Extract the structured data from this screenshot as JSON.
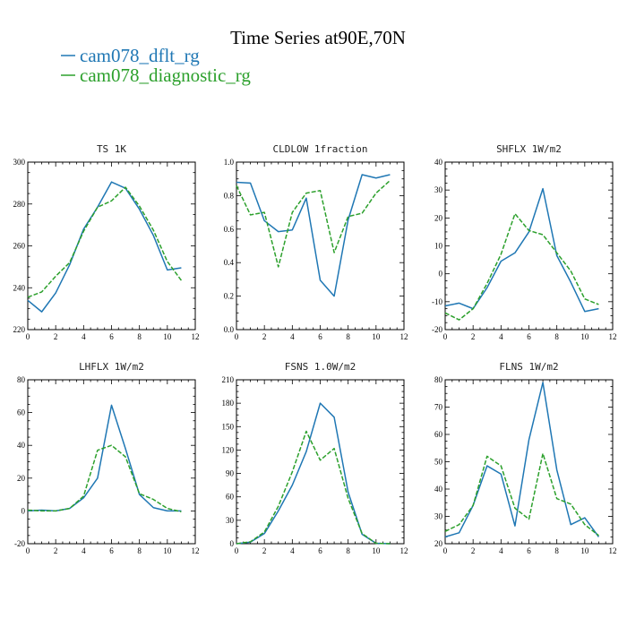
{
  "figure": {
    "title": "Time Series at90E,70N",
    "legend": [
      {
        "name": "cam078_dflt_rg",
        "color": "#1f77b4"
      },
      {
        "name": "cam078_diagnostic_rg",
        "color": "#2ca02c"
      }
    ]
  },
  "chart_data": [
    {
      "type": "line",
      "title": "TS  1K",
      "xlim": [
        0,
        12
      ],
      "xticks": [
        0,
        2,
        4,
        6,
        8,
        10,
        12
      ],
      "ylim": [
        220,
        300
      ],
      "yticks": [
        220,
        240,
        260,
        280,
        300
      ],
      "x": [
        0,
        1,
        2,
        3,
        4,
        5,
        6,
        7,
        8,
        9,
        10,
        11
      ],
      "series": [
        {
          "name": "cam078_dflt_rg",
          "values": [
            234,
            228.5,
            237.5,
            251,
            268,
            278.5,
            290.5,
            287.5,
            277.5,
            265,
            248.5,
            249.5
          ]
        },
        {
          "name": "cam078_diagnostic_rg",
          "values": [
            235.5,
            238,
            245.5,
            252,
            267,
            278.5,
            281.5,
            288,
            279,
            267.5,
            252.5,
            243.5
          ]
        }
      ]
    },
    {
      "type": "line",
      "title": "CLDLOW  1fraction",
      "xlim": [
        0,
        12
      ],
      "xticks": [
        0,
        2,
        4,
        6,
        8,
        10,
        12
      ],
      "ylim": [
        0,
        1
      ],
      "yticks": [
        0.0,
        0.2,
        0.4,
        0.6,
        0.8,
        1.0
      ],
      "x": [
        0,
        1,
        2,
        3,
        4,
        5,
        6,
        7,
        8,
        9,
        10,
        11
      ],
      "series": [
        {
          "name": "cam078_dflt_rg",
          "values": [
            0.88,
            0.875,
            0.65,
            0.585,
            0.595,
            0.785,
            0.295,
            0.2,
            0.655,
            0.925,
            0.905,
            0.925
          ]
        },
        {
          "name": "cam078_diagnostic_rg",
          "values": [
            0.86,
            0.685,
            0.7,
            0.375,
            0.7,
            0.815,
            0.83,
            0.46,
            0.675,
            0.695,
            0.815,
            0.89
          ]
        }
      ]
    },
    {
      "type": "line",
      "title": "SHFLX  1W/m2",
      "xlim": [
        0,
        12
      ],
      "xticks": [
        0,
        2,
        4,
        6,
        8,
        10,
        12
      ],
      "ylim": [
        -20,
        40
      ],
      "yticks": [
        -20,
        -10,
        0,
        10,
        20,
        30,
        40
      ],
      "x": [
        0,
        1,
        2,
        3,
        4,
        5,
        6,
        7,
        8,
        9,
        10,
        11
      ],
      "series": [
        {
          "name": "cam078_dflt_rg",
          "values": [
            -11.5,
            -10.5,
            -12.5,
            -5,
            4.5,
            7.5,
            15,
            30.5,
            6.5,
            -3,
            -13.5,
            -12.5
          ]
        },
        {
          "name": "cam078_diagnostic_rg",
          "values": [
            -14,
            -16.5,
            -12.5,
            -3.5,
            7,
            21.5,
            15.5,
            14,
            7.5,
            1,
            -9,
            -11
          ]
        }
      ]
    },
    {
      "type": "line",
      "title": "LHFLX  1W/m2",
      "xlim": [
        0,
        12
      ],
      "xticks": [
        0,
        2,
        4,
        6,
        8,
        10,
        12
      ],
      "ylim": [
        -20,
        80
      ],
      "yticks": [
        -20,
        0,
        20,
        40,
        60,
        80
      ],
      "x": [
        0,
        1,
        2,
        3,
        4,
        5,
        6,
        7,
        8,
        9,
        10,
        11
      ],
      "series": [
        {
          "name": "cam078_dflt_rg",
          "values": [
            0,
            0.5,
            0,
            1.5,
            8,
            20,
            64.5,
            38,
            10,
            2,
            0,
            0
          ]
        },
        {
          "name": "cam078_diagnostic_rg",
          "values": [
            0.5,
            0,
            0,
            1.5,
            9,
            37,
            40,
            33,
            10.5,
            7,
            1.5,
            -0.5
          ]
        }
      ]
    },
    {
      "type": "line",
      "title": "FSNS  1.0W/m2",
      "xlim": [
        0,
        12
      ],
      "xticks": [
        0,
        2,
        4,
        6,
        8,
        10,
        12
      ],
      "ylim": [
        0,
        210
      ],
      "yticks": [
        0,
        30,
        60,
        90,
        120,
        150,
        180,
        210
      ],
      "x": [
        0,
        1,
        2,
        3,
        4,
        5,
        6,
        7,
        8,
        9,
        10,
        11
      ],
      "series": [
        {
          "name": "cam078_dflt_rg",
          "values": [
            0,
            2,
            13,
            42,
            75,
            118,
            180,
            162,
            66,
            12,
            0.5,
            0
          ]
        },
        {
          "name": "cam078_diagnostic_rg",
          "values": [
            0,
            2.5,
            15,
            48,
            92,
            144,
            107,
            122,
            58,
            13,
            0.5,
            0
          ]
        }
      ]
    },
    {
      "type": "line",
      "title": "FLNS  1W/m2",
      "xlim": [
        0,
        12
      ],
      "xticks": [
        0,
        2,
        4,
        6,
        8,
        10,
        12
      ],
      "ylim": [
        20,
        80
      ],
      "yticks": [
        20,
        30,
        40,
        50,
        60,
        70,
        80
      ],
      "x": [
        0,
        1,
        2,
        3,
        4,
        5,
        6,
        7,
        8,
        9,
        10,
        11
      ],
      "series": [
        {
          "name": "cam078_dflt_rg",
          "values": [
            22.5,
            24,
            34,
            48.5,
            45.5,
            26.5,
            58,
            79,
            47,
            27,
            29.5,
            22.5
          ]
        },
        {
          "name": "cam078_diagnostic_rg",
          "values": [
            24.5,
            27,
            34,
            52,
            48.5,
            33,
            29,
            53,
            36.5,
            34.5,
            27,
            23
          ]
        }
      ]
    }
  ]
}
